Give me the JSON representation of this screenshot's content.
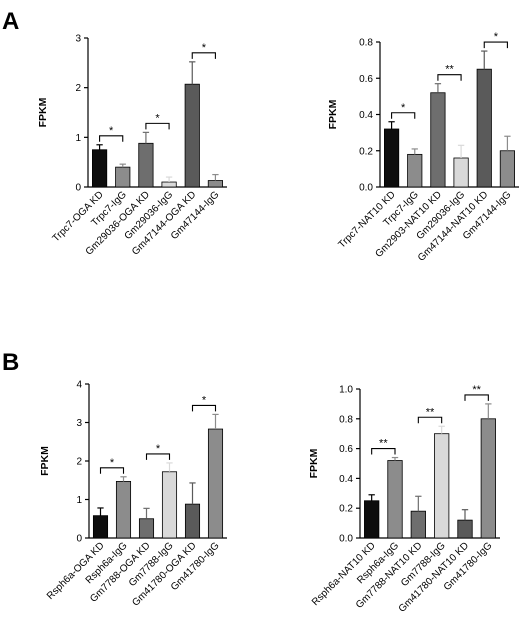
{
  "panels": [
    {
      "letter": "A"
    },
    {
      "letter": "B"
    }
  ],
  "colors": {
    "black": "#0d0d0d",
    "mid_gray": "#8c8c8c",
    "dark_gray": "#6e6e6e",
    "light_gray": "#d9d9d9",
    "darker_gray": "#5a5a5a",
    "bar_stroke": "#000000"
  },
  "chart_data": [
    {
      "type": "bar",
      "panel": "A",
      "ylabel": "FPKM",
      "xlabel": "",
      "ylim": [
        0,
        3
      ],
      "yticks": [
        0,
        1,
        2,
        3
      ],
      "categories": [
        "Trpc7-OGA KD",
        "Trpc7-IgG",
        "Gm29036-OGA KD",
        "Gm29036-IgG",
        "Gm47144-OGA KD",
        "Gm47144-IgG"
      ],
      "values": [
        0.75,
        0.4,
        0.88,
        0.1,
        2.07,
        0.13
      ],
      "errors": [
        0.1,
        0.06,
        0.22,
        0.1,
        0.45,
        0.12
      ],
      "bar_colors": [
        "black",
        "mid_gray",
        "dark_gray",
        "light_gray",
        "darker_gray",
        "mid_gray"
      ],
      "significance": [
        {
          "pair": [
            0,
            1
          ],
          "label": "*"
        },
        {
          "pair": [
            2,
            3
          ],
          "label": "*"
        },
        {
          "pair": [
            4,
            5
          ],
          "label": "*"
        }
      ],
      "grid": false,
      "legend": "none"
    },
    {
      "type": "bar",
      "panel": "A",
      "ylabel": "FPKM",
      "xlabel": "",
      "ylim": [
        0,
        0.8
      ],
      "yticks": [
        0.0,
        0.2,
        0.4,
        0.6,
        0.8
      ],
      "categories": [
        "Trpc7-NAT10 KD",
        "Trpc7-IgG",
        "Gm2903-NAT10 KD",
        "Gm29036-IgG",
        "Gm47144-NAT10 KD",
        "Gm47144-IgG"
      ],
      "values": [
        0.32,
        0.18,
        0.52,
        0.16,
        0.65,
        0.2
      ],
      "errors": [
        0.04,
        0.03,
        0.05,
        0.07,
        0.1,
        0.08
      ],
      "bar_colors": [
        "black",
        "mid_gray",
        "dark_gray",
        "light_gray",
        "darker_gray",
        "mid_gray"
      ],
      "significance": [
        {
          "pair": [
            0,
            1
          ],
          "label": "*"
        },
        {
          "pair": [
            2,
            3
          ],
          "label": "**"
        },
        {
          "pair": [
            4,
            5
          ],
          "label": "*"
        }
      ],
      "grid": false,
      "legend": "none"
    },
    {
      "type": "bar",
      "panel": "B",
      "ylabel": "FPKM",
      "xlabel": "",
      "ylim": [
        0,
        4
      ],
      "yticks": [
        0,
        1,
        2,
        3,
        4
      ],
      "categories": [
        "Rsph6a-OGA KD",
        "Rsph6a-IgG",
        "Gm7788-OGA KD",
        "Gm7788-IgG",
        "Gm41780-OGA KD",
        "Gm41780-IgG"
      ],
      "values": [
        0.58,
        1.47,
        0.5,
        1.72,
        0.88,
        2.83
      ],
      "errors": [
        0.2,
        0.12,
        0.27,
        0.23,
        0.55,
        0.38
      ],
      "bar_colors": [
        "black",
        "mid_gray",
        "dark_gray",
        "light_gray",
        "darker_gray",
        "mid_gray"
      ],
      "significance": [
        {
          "pair": [
            0,
            1
          ],
          "label": "*"
        },
        {
          "pair": [
            2,
            3
          ],
          "label": "*"
        },
        {
          "pair": [
            4,
            5
          ],
          "label": "*"
        }
      ],
      "grid": false,
      "legend": "none"
    },
    {
      "type": "bar",
      "panel": "B",
      "ylabel": "FPKM",
      "xlabel": "",
      "ylim": [
        0,
        1.0
      ],
      "yticks": [
        0.0,
        0.2,
        0.4,
        0.6,
        0.8,
        1.0
      ],
      "categories": [
        "Rsph6a-NAT10 KD",
        "Rsph6a-IgG",
        "Gm7788-NAT10 KD",
        "Gm7788-IgG",
        "Gm41780-NAT10 KD",
        "Gm41780-IgG"
      ],
      "values": [
        0.25,
        0.52,
        0.18,
        0.7,
        0.12,
        0.8
      ],
      "errors": [
        0.04,
        0.02,
        0.1,
        0.05,
        0.07,
        0.1
      ],
      "bar_colors": [
        "black",
        "mid_gray",
        "dark_gray",
        "light_gray",
        "darker_gray",
        "mid_gray"
      ],
      "significance": [
        {
          "pair": [
            0,
            1
          ],
          "label": "**"
        },
        {
          "pair": [
            2,
            3
          ],
          "label": "**"
        },
        {
          "pair": [
            4,
            5
          ],
          "label": "**"
        }
      ],
      "grid": false,
      "legend": "none"
    }
  ]
}
